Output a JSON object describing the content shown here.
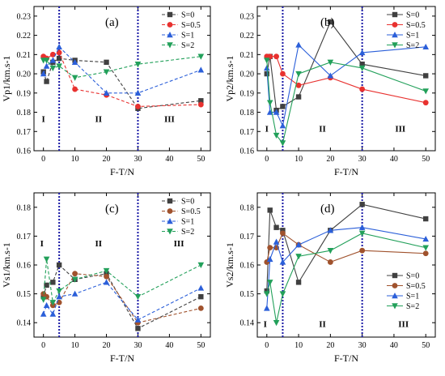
{
  "colors": {
    "S=0": "#404040",
    "S=0.5": "#e8312f",
    "S=1": "#2b5fd9",
    "S=2": "#22a05a",
    "S=0.5-c": "#a0522d",
    "divider": "#1a1aa6"
  },
  "chart_data": [
    {
      "type": "line",
      "panel": "(a)",
      "xlabel": "F-T/N",
      "ylabel": "Vp1/km.s-1",
      "xlim": [
        -3,
        53
      ],
      "ylim": [
        0.16,
        0.235
      ],
      "xticks": [
        0,
        10,
        20,
        30,
        40,
        50
      ],
      "yticks": [
        0.16,
        0.17,
        0.18,
        0.19,
        0.2,
        0.21,
        0.22,
        0.23
      ],
      "ytick_labels": [
        "0.16",
        "0.17",
        "0.18",
        "0.19",
        "0.20",
        "0.21",
        "0.22",
        "0.23"
      ],
      "dashed": true,
      "dividers": [
        5,
        30
      ],
      "regions": [
        {
          "label": "I",
          "x": 0
        },
        {
          "label": "II",
          "x": 17.5
        },
        {
          "label": "III",
          "x": 40
        }
      ],
      "regions_y": 0.175,
      "legend_position": "top-right",
      "series": [
        {
          "name": "S=0",
          "color_key": "S=0",
          "marker": "square",
          "x": [
            0,
            1,
            3,
            5,
            10,
            20,
            30,
            50
          ],
          "y": [
            0.201,
            0.196,
            0.206,
            0.208,
            0.207,
            0.206,
            0.182,
            0.186
          ]
        },
        {
          "name": "S=0.5",
          "color_key": "S=0.5",
          "marker": "circle",
          "x": [
            0,
            1,
            3,
            5,
            10,
            20,
            30,
            50
          ],
          "y": [
            0.209,
            0.208,
            0.21,
            0.211,
            0.192,
            0.189,
            0.183,
            0.184
          ]
        },
        {
          "name": "S=1",
          "color_key": "S=1",
          "marker": "triangle-up",
          "x": [
            0,
            1,
            3,
            5,
            10,
            20,
            30,
            50
          ],
          "y": [
            0.2,
            0.204,
            0.207,
            0.214,
            0.206,
            0.19,
            0.19,
            0.202
          ]
        },
        {
          "name": "S=2",
          "color_key": "S=2",
          "marker": "triangle-down",
          "x": [
            0,
            1,
            3,
            5,
            10,
            20,
            30,
            50
          ],
          "y": [
            0.207,
            0.207,
            0.203,
            0.204,
            0.198,
            0.201,
            0.205,
            0.209
          ]
        }
      ]
    },
    {
      "type": "line",
      "panel": "(b)",
      "xlabel": "F-T/N",
      "ylabel": "Vp2/km.s-1",
      "xlim": [
        -3,
        53
      ],
      "ylim": [
        0.16,
        0.235
      ],
      "xticks": [
        0,
        10,
        20,
        30,
        40,
        50
      ],
      "yticks": [
        0.16,
        0.17,
        0.18,
        0.19,
        0.2,
        0.21,
        0.22,
        0.23
      ],
      "ytick_labels": [
        "0.16",
        "0.17",
        "0.18",
        "0.19",
        "0.20",
        "0.21",
        "0.22",
        "0.23"
      ],
      "dashed": false,
      "dividers": [
        5,
        30
      ],
      "regions": [
        {
          "label": "I",
          "x": 0
        },
        {
          "label": "II",
          "x": 17.5
        },
        {
          "label": "III",
          "x": 42
        }
      ],
      "regions_y": 0.17,
      "legend_position": "top-right",
      "series": [
        {
          "name": "S=0",
          "color_key": "S=0",
          "marker": "square",
          "x": [
            0,
            1,
            3,
            5,
            10,
            20,
            30,
            50
          ],
          "y": [
            0.2,
            0.209,
            0.181,
            0.183,
            0.188,
            0.227,
            0.205,
            0.199
          ]
        },
        {
          "name": "S=0.5",
          "color_key": "S=0.5",
          "marker": "circle",
          "x": [
            0,
            1,
            3,
            5,
            10,
            20,
            30,
            50
          ],
          "y": [
            0.209,
            0.209,
            0.209,
            0.2,
            0.194,
            0.198,
            0.192,
            0.185
          ]
        },
        {
          "name": "S=1",
          "color_key": "S=1",
          "marker": "triangle-up",
          "x": [
            0,
            1,
            3,
            5,
            10,
            20,
            30,
            50
          ],
          "y": [
            0.203,
            0.18,
            0.18,
            0.173,
            0.215,
            0.199,
            0.211,
            0.214
          ]
        },
        {
          "name": "S=2",
          "color_key": "S=2",
          "marker": "triangle-down",
          "x": [
            0,
            1,
            3,
            5,
            10,
            20,
            30,
            50
          ],
          "y": [
            0.207,
            0.185,
            0.168,
            0.164,
            0.2,
            0.206,
            0.203,
            0.191
          ]
        }
      ]
    },
    {
      "type": "line",
      "panel": "(c)",
      "xlabel": "F-T/N",
      "ylabel": "Vs1/km.s-1",
      "xlim": [
        -3,
        53
      ],
      "ylim": [
        0.135,
        0.185
      ],
      "xticks": [
        0,
        10,
        20,
        30,
        40,
        50
      ],
      "yticks": [
        0.14,
        0.15,
        0.16,
        0.17,
        0.18
      ],
      "ytick_labels": [
        "0.14",
        "0.15",
        "0.16",
        "0.17",
        "0.18"
      ],
      "dashed": true,
      "dividers": [
        5,
        30
      ],
      "regions": [
        {
          "label": "I",
          "x": -0.5
        },
        {
          "label": "II",
          "x": 17.5
        },
        {
          "label": "III",
          "x": 43
        }
      ],
      "regions_y": 0.1665,
      "legend_position": "top-right",
      "series": [
        {
          "name": "S=0",
          "color_key": "S=0",
          "marker": "square",
          "x": [
            0,
            1,
            3,
            5,
            10,
            20,
            30,
            50
          ],
          "y": [
            0.149,
            0.153,
            0.154,
            0.16,
            0.155,
            0.157,
            0.138,
            0.149
          ]
        },
        {
          "name": "S=0.5",
          "color_key": "S=0.5-c",
          "marker": "circle",
          "x": [
            0,
            1,
            3,
            5,
            10,
            20,
            30,
            50
          ],
          "y": [
            0.15,
            0.149,
            0.146,
            0.147,
            0.157,
            0.156,
            0.14,
            0.145
          ]
        },
        {
          "name": "S=1",
          "color_key": "S=1",
          "marker": "triangle-up",
          "x": [
            0,
            1,
            3,
            5,
            10,
            20,
            30,
            50
          ],
          "y": [
            0.143,
            0.146,
            0.143,
            0.149,
            0.15,
            0.154,
            0.141,
            0.152
          ]
        },
        {
          "name": "S=2",
          "color_key": "S=2",
          "marker": "triangle-down",
          "x": [
            0,
            1,
            3,
            5,
            10,
            20,
            30,
            50
          ],
          "y": [
            0.148,
            0.162,
            0.147,
            0.151,
            0.155,
            0.158,
            0.149,
            0.16
          ]
        }
      ]
    },
    {
      "type": "line",
      "panel": "(d)",
      "xlabel": "F-T/N",
      "ylabel": "Vs2/km.s-1",
      "xlim": [
        -3,
        53
      ],
      "ylim": [
        0.135,
        0.185
      ],
      "xticks": [
        0,
        10,
        20,
        30,
        40,
        50
      ],
      "yticks": [
        0.14,
        0.15,
        0.16,
        0.17,
        0.18
      ],
      "ytick_labels": [
        "0.14",
        "0.15",
        "0.16",
        "0.17",
        "0.18"
      ],
      "dashed": false,
      "dividers": [
        5,
        30
      ],
      "regions": [
        {
          "label": "I",
          "x": -0.5
        },
        {
          "label": "II",
          "x": 17.5
        },
        {
          "label": "III",
          "x": 43
        }
      ],
      "regions_y": 0.1385,
      "legend_position": "center-right",
      "series": [
        {
          "name": "S=0",
          "color_key": "S=0",
          "marker": "square",
          "x": [
            0,
            1,
            3,
            5,
            10,
            20,
            30,
            50
          ],
          "y": [
            0.151,
            0.179,
            0.173,
            0.172,
            0.154,
            0.172,
            0.181,
            0.176
          ]
        },
        {
          "name": "S=0.5",
          "color_key": "S=0.5-c",
          "marker": "circle",
          "x": [
            0,
            1,
            3,
            5,
            10,
            20,
            30,
            50
          ],
          "y": [
            0.161,
            0.166,
            0.166,
            0.171,
            0.167,
            0.161,
            0.165,
            0.164
          ]
        },
        {
          "name": "S=1",
          "color_key": "S=1",
          "marker": "triangle-up",
          "x": [
            0,
            1,
            3,
            5,
            10,
            20,
            30,
            50
          ],
          "y": [
            0.145,
            0.162,
            0.168,
            0.161,
            0.167,
            0.172,
            0.173,
            0.169
          ]
        },
        {
          "name": "S=2",
          "color_key": "S=2",
          "marker": "triangle-down",
          "x": [
            0,
            1,
            3,
            5,
            10,
            20,
            30,
            50
          ],
          "y": [
            0.15,
            0.154,
            0.14,
            0.15,
            0.163,
            0.165,
            0.171,
            0.166
          ]
        }
      ]
    }
  ]
}
